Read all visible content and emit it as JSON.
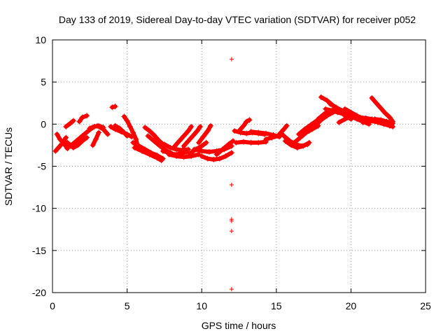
{
  "chart_data": {
    "type": "scatter",
    "title": "Day 133 of 2019, Sidereal Day-to-day VTEC variation (SDTVAR) for receiver p052",
    "xlabel": "GPS time / hours",
    "ylabel": "SDTVAR / TECUs",
    "xlim": [
      0,
      25
    ],
    "ylim": [
      -20,
      10
    ],
    "xticks": [
      0,
      5,
      10,
      15,
      20,
      25
    ],
    "xtick_labels": [
      "0",
      "5",
      "10",
      "15",
      "20",
      "25"
    ],
    "yticks": [
      -20,
      -15,
      -10,
      -5,
      0,
      5,
      10
    ],
    "ytick_labels": [
      "-20",
      "-15",
      "-10",
      "-5",
      "0",
      "5",
      "10"
    ],
    "grid": true,
    "marker": "+",
    "series_color": "#ff0000",
    "tracks": [
      [
        [
          0.2,
          -3.2
        ],
        [
          0.4,
          -2.8
        ],
        [
          0.7,
          -2.2
        ],
        [
          0.9,
          -1.6
        ]
      ],
      [
        [
          0.3,
          -1.2
        ],
        [
          0.5,
          -1.8
        ],
        [
          0.8,
          -2.4
        ],
        [
          1.0,
          -2.9
        ]
      ],
      [
        [
          0.9,
          -0.3
        ],
        [
          1.2,
          0.1
        ],
        [
          1.4,
          0.4
        ]
      ],
      [
        [
          1.0,
          -2.2
        ],
        [
          1.4,
          -2.8
        ],
        [
          1.7,
          -2.5
        ],
        [
          2.0,
          -2.0
        ],
        [
          2.3,
          -1.6
        ]
      ],
      [
        [
          1.2,
          -2.6
        ],
        [
          1.6,
          -2.0
        ],
        [
          2.0,
          -1.4
        ],
        [
          2.4,
          -0.8
        ],
        [
          2.7,
          -0.4
        ]
      ],
      [
        [
          1.8,
          0.3
        ],
        [
          2.0,
          0.8
        ],
        [
          2.3,
          1.0
        ]
      ],
      [
        [
          2.5,
          -0.5
        ],
        [
          2.8,
          -0.3
        ],
        [
          3.1,
          -0.2
        ],
        [
          3.4,
          -0.4
        ]
      ],
      [
        [
          2.7,
          -2.5
        ],
        [
          2.9,
          -1.8
        ],
        [
          3.1,
          -1.0
        ]
      ],
      [
        [
          3.0,
          -0.2
        ],
        [
          3.4,
          -0.6
        ],
        [
          3.7,
          -1.2
        ]
      ],
      [
        [
          4.0,
          2.0
        ],
        [
          4.2,
          2.1
        ]
      ],
      [
        [
          3.9,
          -0.3
        ],
        [
          4.2,
          -0.6
        ],
        [
          4.6,
          -0.9
        ],
        [
          5.0,
          -1.2
        ],
        [
          5.3,
          -1.5
        ]
      ],
      [
        [
          4.8,
          0.9
        ],
        [
          5.0,
          0.4
        ],
        [
          5.2,
          -0.3
        ],
        [
          5.4,
          -1.0
        ],
        [
          5.6,
          -1.8
        ],
        [
          5.7,
          -2.6
        ]
      ],
      [
        [
          4.2,
          -0.2
        ],
        [
          4.5,
          -0.5
        ],
        [
          4.8,
          -1.0
        ],
        [
          5.0,
          -1.4
        ]
      ],
      [
        [
          5.4,
          -2.2
        ],
        [
          5.8,
          -2.6
        ],
        [
          6.2,
          -3.0
        ],
        [
          6.6,
          -3.4
        ],
        [
          7.0,
          -3.7
        ],
        [
          7.4,
          -4.1
        ]
      ],
      [
        [
          5.5,
          -2.8
        ],
        [
          6.0,
          -3.2
        ],
        [
          6.5,
          -3.6
        ],
        [
          7.0,
          -4.0
        ],
        [
          7.3,
          -4.3
        ]
      ],
      [
        [
          6.2,
          -0.4
        ],
        [
          6.5,
          -0.8
        ],
        [
          6.8,
          -1.3
        ],
        [
          7.1,
          -1.9
        ],
        [
          7.4,
          -2.4
        ]
      ],
      [
        [
          6.4,
          -1.4
        ],
        [
          6.8,
          -2.0
        ],
        [
          7.2,
          -2.6
        ],
        [
          7.6,
          -3.1
        ],
        [
          8.0,
          -3.5
        ]
      ],
      [
        [
          7.4,
          -3.2
        ],
        [
          7.8,
          -3.4
        ],
        [
          8.2,
          -3.6
        ],
        [
          8.6,
          -3.5
        ],
        [
          9.0,
          -3.3
        ]
      ],
      [
        [
          7.5,
          -2.4
        ],
        [
          7.9,
          -2.8
        ],
        [
          8.3,
          -3.0
        ],
        [
          8.7,
          -3.1
        ],
        [
          9.1,
          -3.0
        ]
      ],
      [
        [
          7.8,
          -3.6
        ],
        [
          8.3,
          -3.8
        ],
        [
          8.8,
          -3.9
        ],
        [
          9.3,
          -3.8
        ],
        [
          9.8,
          -3.6
        ]
      ],
      [
        [
          8.2,
          -2.6
        ],
        [
          8.5,
          -2.0
        ],
        [
          8.8,
          -1.4
        ],
        [
          9.1,
          -0.8
        ],
        [
          9.3,
          -0.3
        ]
      ],
      [
        [
          8.8,
          -2.6
        ],
        [
          9.1,
          -2.0
        ],
        [
          9.4,
          -1.4
        ],
        [
          9.7,
          -0.8
        ],
        [
          9.9,
          -0.3
        ]
      ],
      [
        [
          9.2,
          -3.5
        ],
        [
          9.6,
          -3.0
        ],
        [
          10.0,
          -2.6
        ],
        [
          10.3,
          -2.2
        ]
      ],
      [
        [
          9.8,
          -2.2
        ],
        [
          10.1,
          -1.5
        ],
        [
          10.4,
          -0.8
        ],
        [
          10.6,
          -0.2
        ]
      ],
      [
        [
          10.0,
          -3.8
        ],
        [
          10.4,
          -4.1
        ],
        [
          10.8,
          -4.2
        ],
        [
          11.2,
          -4.1
        ],
        [
          11.6,
          -3.8
        ],
        [
          12.0,
          -3.4
        ]
      ],
      [
        [
          9.5,
          -3.0
        ],
        [
          10.0,
          -3.2
        ],
        [
          10.5,
          -3.3
        ],
        [
          11.0,
          -3.2
        ],
        [
          11.5,
          -3.0
        ],
        [
          12.0,
          -2.6
        ]
      ],
      [
        [
          11.0,
          -3.6
        ],
        [
          11.4,
          -3.0
        ],
        [
          11.8,
          -2.4
        ],
        [
          12.1,
          -2.0
        ]
      ],
      [
        [
          12.5,
          -0.8
        ],
        [
          12.8,
          -0.2
        ],
        [
          13.0,
          0.3
        ],
        [
          13.2,
          0.5
        ]
      ],
      [
        [
          12.3,
          -2.2
        ],
        [
          12.8,
          -2.1
        ],
        [
          13.3,
          -2.2
        ],
        [
          13.8,
          -2.2
        ],
        [
          14.3,
          -2.1
        ]
      ],
      [
        [
          12.2,
          -0.8
        ],
        [
          12.6,
          -1.0
        ],
        [
          13.0,
          -1.1
        ],
        [
          13.4,
          -1.0
        ],
        [
          13.8,
          -1.1
        ],
        [
          14.2,
          -1.2
        ]
      ],
      [
        [
          13.3,
          -0.9
        ],
        [
          13.8,
          -1.0
        ],
        [
          14.3,
          -1.1
        ],
        [
          14.8,
          -1.3
        ],
        [
          15.2,
          -1.5
        ]
      ],
      [
        [
          14.3,
          -1.8
        ],
        [
          14.7,
          -1.6
        ],
        [
          15.1,
          -1.4
        ],
        [
          15.4,
          -1.2
        ]
      ],
      [
        [
          15.2,
          -1.2
        ],
        [
          15.5,
          -0.6
        ],
        [
          15.7,
          -0.2
        ]
      ],
      [
        [
          15.5,
          -1.4
        ],
        [
          15.9,
          -2.0
        ],
        [
          16.3,
          -2.4
        ],
        [
          16.7,
          -2.6
        ],
        [
          17.1,
          -2.4
        ]
      ],
      [
        [
          15.6,
          -2.0
        ],
        [
          16.0,
          -2.5
        ],
        [
          16.4,
          -2.8
        ],
        [
          16.8,
          -2.6
        ],
        [
          17.2,
          -2.2
        ]
      ],
      [
        [
          16.2,
          -2.2
        ],
        [
          16.6,
          -1.6
        ],
        [
          17.0,
          -1.0
        ],
        [
          17.4,
          -0.6
        ],
        [
          17.8,
          -0.2
        ]
      ],
      [
        [
          16.5,
          -1.2
        ],
        [
          16.9,
          -0.6
        ],
        [
          17.3,
          -0.1
        ],
        [
          17.7,
          0.4
        ],
        [
          18.1,
          0.8
        ]
      ],
      [
        [
          17.2,
          -0.8
        ],
        [
          17.6,
          -0.2
        ],
        [
          18.0,
          0.5
        ],
        [
          18.4,
          1.0
        ],
        [
          18.8,
          1.4
        ]
      ],
      [
        [
          17.8,
          0.6
        ],
        [
          18.2,
          1.2
        ],
        [
          18.6,
          1.6
        ],
        [
          19.0,
          1.8
        ]
      ],
      [
        [
          18.0,
          3.2
        ],
        [
          18.4,
          2.8
        ],
        [
          18.8,
          2.2
        ],
        [
          19.2,
          1.6
        ],
        [
          19.6,
          1.0
        ],
        [
          20.0,
          0.6
        ]
      ],
      [
        [
          18.3,
          1.8
        ],
        [
          18.7,
          1.6
        ],
        [
          19.1,
          1.4
        ],
        [
          19.5,
          1.2
        ],
        [
          19.9,
          1.0
        ],
        [
          20.3,
          0.8
        ]
      ],
      [
        [
          18.6,
          2.4
        ],
        [
          19.0,
          2.0
        ],
        [
          19.4,
          1.6
        ],
        [
          19.8,
          1.3
        ],
        [
          20.2,
          1.0
        ],
        [
          20.6,
          0.6
        ]
      ],
      [
        [
          19.2,
          0.2
        ],
        [
          19.6,
          0.6
        ],
        [
          20.0,
          0.9
        ],
        [
          20.4,
          0.6
        ],
        [
          20.8,
          0.3
        ],
        [
          21.2,
          0.0
        ]
      ],
      [
        [
          19.6,
          1.8
        ],
        [
          20.0,
          1.4
        ],
        [
          20.4,
          1.0
        ],
        [
          20.8,
          0.6
        ],
        [
          21.2,
          0.4
        ],
        [
          21.6,
          0.3
        ]
      ],
      [
        [
          20.2,
          0.9
        ],
        [
          20.6,
          0.8
        ],
        [
          21.0,
          0.7
        ],
        [
          21.4,
          0.6
        ],
        [
          21.8,
          0.4
        ],
        [
          22.2,
          0.2
        ]
      ],
      [
        [
          21.4,
          3.1
        ],
        [
          21.7,
          2.5
        ],
        [
          22.0,
          1.9
        ],
        [
          22.3,
          1.3
        ],
        [
          22.6,
          0.8
        ],
        [
          22.8,
          0.3
        ]
      ],
      [
        [
          21.0,
          0.6
        ],
        [
          21.4,
          0.4
        ],
        [
          21.8,
          0.2
        ],
        [
          22.2,
          0.0
        ],
        [
          22.6,
          -0.2
        ],
        [
          22.8,
          -0.3
        ]
      ],
      [
        [
          20.8,
          0.2
        ],
        [
          21.2,
          0.4
        ],
        [
          21.6,
          0.6
        ],
        [
          22.0,
          0.5
        ],
        [
          22.4,
          0.3
        ],
        [
          22.8,
          0.1
        ]
      ]
    ],
    "outliers": [
      {
        "x": 12.0,
        "y": 7.7
      },
      {
        "x": 12.0,
        "y": -7.2
      },
      {
        "x": 12.0,
        "y": -11.3
      },
      {
        "x": 12.0,
        "y": -11.5
      },
      {
        "x": 12.0,
        "y": -12.7
      },
      {
        "x": 12.0,
        "y": -19.6
      }
    ]
  }
}
